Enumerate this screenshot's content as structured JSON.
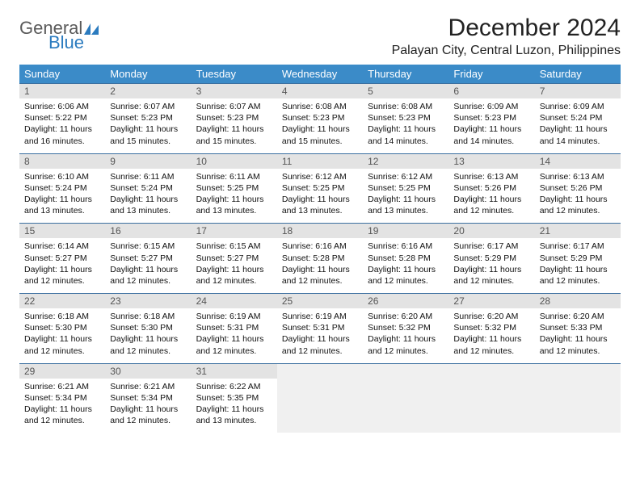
{
  "brand": {
    "word1": "General",
    "word2": "Blue",
    "mark_color": "#2b7bbf",
    "text_gray": "#5a5a5a"
  },
  "header": {
    "title": "December 2024",
    "location": "Palayan City, Central Luzon, Philippines"
  },
  "styling": {
    "header_row_bg": "#3b8bc8",
    "header_row_text": "#ffffff",
    "row_divider": "#3b6fa0",
    "daynum_bg": "#e3e3e3",
    "daynum_text": "#555555",
    "body_text": "#111111",
    "empty_bg": "#f0f0f0",
    "page_bg": "#ffffff",
    "font_family": "Arial",
    "th_fontsize": 13,
    "daynum_fontsize": 12,
    "body_fontsize": 10.5,
    "title_fontsize": 30,
    "location_fontsize": 16
  },
  "weekdays": [
    "Sunday",
    "Monday",
    "Tuesday",
    "Wednesday",
    "Thursday",
    "Friday",
    "Saturday"
  ],
  "weeks": [
    [
      {
        "n": "1",
        "sr": "Sunrise: 6:06 AM",
        "ss": "Sunset: 5:22 PM",
        "d1": "Daylight: 11 hours",
        "d2": "and 16 minutes."
      },
      {
        "n": "2",
        "sr": "Sunrise: 6:07 AM",
        "ss": "Sunset: 5:23 PM",
        "d1": "Daylight: 11 hours",
        "d2": "and 15 minutes."
      },
      {
        "n": "3",
        "sr": "Sunrise: 6:07 AM",
        "ss": "Sunset: 5:23 PM",
        "d1": "Daylight: 11 hours",
        "d2": "and 15 minutes."
      },
      {
        "n": "4",
        "sr": "Sunrise: 6:08 AM",
        "ss": "Sunset: 5:23 PM",
        "d1": "Daylight: 11 hours",
        "d2": "and 15 minutes."
      },
      {
        "n": "5",
        "sr": "Sunrise: 6:08 AM",
        "ss": "Sunset: 5:23 PM",
        "d1": "Daylight: 11 hours",
        "d2": "and 14 minutes."
      },
      {
        "n": "6",
        "sr": "Sunrise: 6:09 AM",
        "ss": "Sunset: 5:23 PM",
        "d1": "Daylight: 11 hours",
        "d2": "and 14 minutes."
      },
      {
        "n": "7",
        "sr": "Sunrise: 6:09 AM",
        "ss": "Sunset: 5:24 PM",
        "d1": "Daylight: 11 hours",
        "d2": "and 14 minutes."
      }
    ],
    [
      {
        "n": "8",
        "sr": "Sunrise: 6:10 AM",
        "ss": "Sunset: 5:24 PM",
        "d1": "Daylight: 11 hours",
        "d2": "and 13 minutes."
      },
      {
        "n": "9",
        "sr": "Sunrise: 6:11 AM",
        "ss": "Sunset: 5:24 PM",
        "d1": "Daylight: 11 hours",
        "d2": "and 13 minutes."
      },
      {
        "n": "10",
        "sr": "Sunrise: 6:11 AM",
        "ss": "Sunset: 5:25 PM",
        "d1": "Daylight: 11 hours",
        "d2": "and 13 minutes."
      },
      {
        "n": "11",
        "sr": "Sunrise: 6:12 AM",
        "ss": "Sunset: 5:25 PM",
        "d1": "Daylight: 11 hours",
        "d2": "and 13 minutes."
      },
      {
        "n": "12",
        "sr": "Sunrise: 6:12 AM",
        "ss": "Sunset: 5:25 PM",
        "d1": "Daylight: 11 hours",
        "d2": "and 13 minutes."
      },
      {
        "n": "13",
        "sr": "Sunrise: 6:13 AM",
        "ss": "Sunset: 5:26 PM",
        "d1": "Daylight: 11 hours",
        "d2": "and 12 minutes."
      },
      {
        "n": "14",
        "sr": "Sunrise: 6:13 AM",
        "ss": "Sunset: 5:26 PM",
        "d1": "Daylight: 11 hours",
        "d2": "and 12 minutes."
      }
    ],
    [
      {
        "n": "15",
        "sr": "Sunrise: 6:14 AM",
        "ss": "Sunset: 5:27 PM",
        "d1": "Daylight: 11 hours",
        "d2": "and 12 minutes."
      },
      {
        "n": "16",
        "sr": "Sunrise: 6:15 AM",
        "ss": "Sunset: 5:27 PM",
        "d1": "Daylight: 11 hours",
        "d2": "and 12 minutes."
      },
      {
        "n": "17",
        "sr": "Sunrise: 6:15 AM",
        "ss": "Sunset: 5:27 PM",
        "d1": "Daylight: 11 hours",
        "d2": "and 12 minutes."
      },
      {
        "n": "18",
        "sr": "Sunrise: 6:16 AM",
        "ss": "Sunset: 5:28 PM",
        "d1": "Daylight: 11 hours",
        "d2": "and 12 minutes."
      },
      {
        "n": "19",
        "sr": "Sunrise: 6:16 AM",
        "ss": "Sunset: 5:28 PM",
        "d1": "Daylight: 11 hours",
        "d2": "and 12 minutes."
      },
      {
        "n": "20",
        "sr": "Sunrise: 6:17 AM",
        "ss": "Sunset: 5:29 PM",
        "d1": "Daylight: 11 hours",
        "d2": "and 12 minutes."
      },
      {
        "n": "21",
        "sr": "Sunrise: 6:17 AM",
        "ss": "Sunset: 5:29 PM",
        "d1": "Daylight: 11 hours",
        "d2": "and 12 minutes."
      }
    ],
    [
      {
        "n": "22",
        "sr": "Sunrise: 6:18 AM",
        "ss": "Sunset: 5:30 PM",
        "d1": "Daylight: 11 hours",
        "d2": "and 12 minutes."
      },
      {
        "n": "23",
        "sr": "Sunrise: 6:18 AM",
        "ss": "Sunset: 5:30 PM",
        "d1": "Daylight: 11 hours",
        "d2": "and 12 minutes."
      },
      {
        "n": "24",
        "sr": "Sunrise: 6:19 AM",
        "ss": "Sunset: 5:31 PM",
        "d1": "Daylight: 11 hours",
        "d2": "and 12 minutes."
      },
      {
        "n": "25",
        "sr": "Sunrise: 6:19 AM",
        "ss": "Sunset: 5:31 PM",
        "d1": "Daylight: 11 hours",
        "d2": "and 12 minutes."
      },
      {
        "n": "26",
        "sr": "Sunrise: 6:20 AM",
        "ss": "Sunset: 5:32 PM",
        "d1": "Daylight: 11 hours",
        "d2": "and 12 minutes."
      },
      {
        "n": "27",
        "sr": "Sunrise: 6:20 AM",
        "ss": "Sunset: 5:32 PM",
        "d1": "Daylight: 11 hours",
        "d2": "and 12 minutes."
      },
      {
        "n": "28",
        "sr": "Sunrise: 6:20 AM",
        "ss": "Sunset: 5:33 PM",
        "d1": "Daylight: 11 hours",
        "d2": "and 12 minutes."
      }
    ],
    [
      {
        "n": "29",
        "sr": "Sunrise: 6:21 AM",
        "ss": "Sunset: 5:34 PM",
        "d1": "Daylight: 11 hours",
        "d2": "and 12 minutes."
      },
      {
        "n": "30",
        "sr": "Sunrise: 6:21 AM",
        "ss": "Sunset: 5:34 PM",
        "d1": "Daylight: 11 hours",
        "d2": "and 12 minutes."
      },
      {
        "n": "31",
        "sr": "Sunrise: 6:22 AM",
        "ss": "Sunset: 5:35 PM",
        "d1": "Daylight: 11 hours",
        "d2": "and 13 minutes."
      },
      null,
      null,
      null,
      null
    ]
  ]
}
